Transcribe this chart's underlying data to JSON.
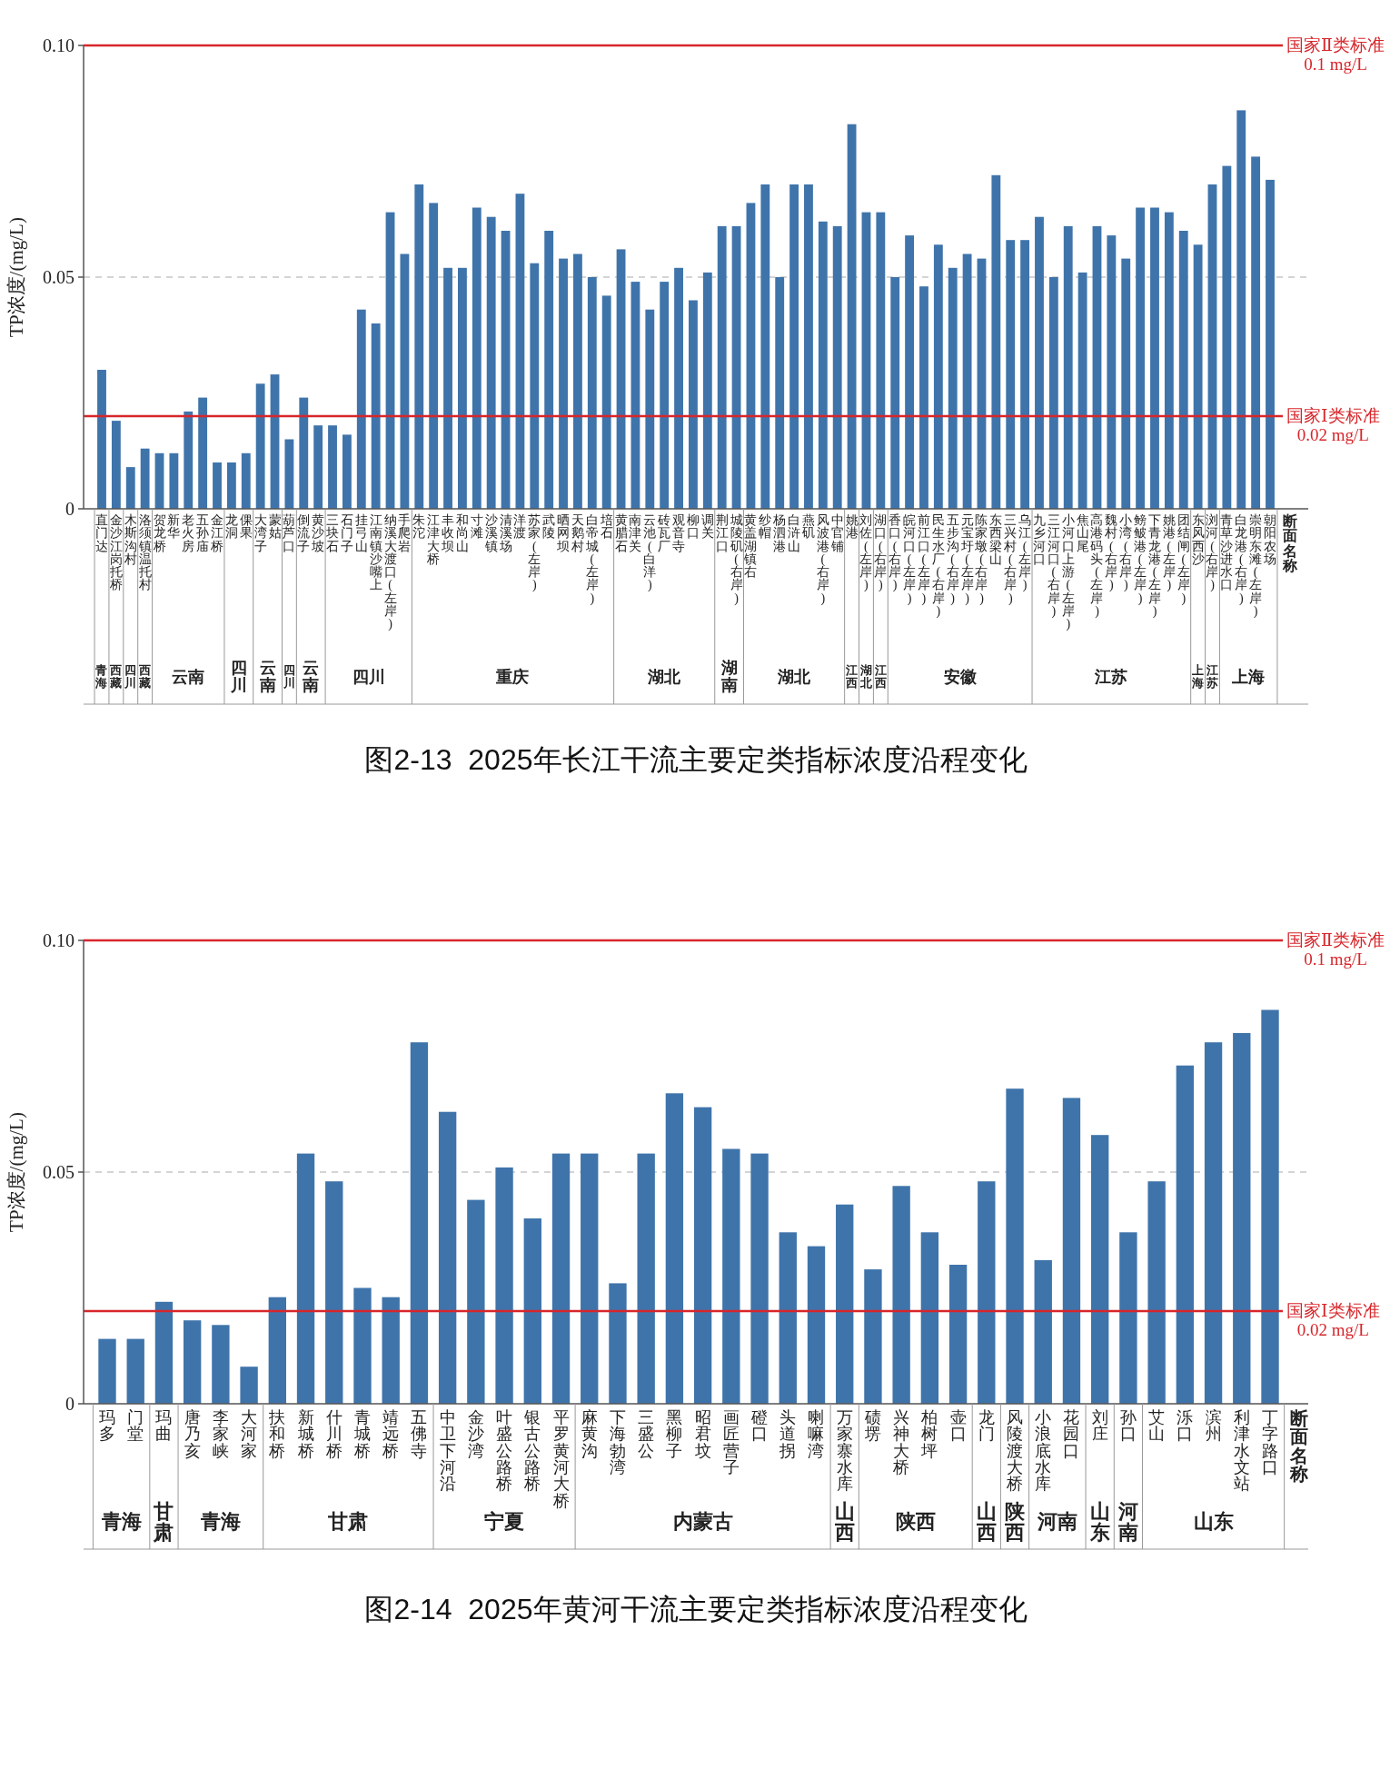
{
  "chart_data": [
    {
      "type": "bar",
      "title": "图2-13  2025年长江干流主要定类指标浓度沿程变化",
      "ylabel": "TP浓度/(mg/L)",
      "color": "#3f74ab",
      "ylim": [
        0,
        0.1
      ],
      "yticks": [
        {
          "value": 0,
          "label": "0"
        },
        {
          "value": 0.05,
          "label": "0.05"
        },
        {
          "value": 0.1,
          "label": "0.10"
        }
      ],
      "grid": "y",
      "categories": [
        "直门达",
        "金沙江岗托桥",
        "木斯沟村",
        "洛须镇温托村",
        "贺龙桥",
        "新华",
        "老火房",
        "五孙庙",
        "金江桥",
        "龙洞",
        "倮果",
        "大湾子",
        "蒙姑",
        "葫芦口",
        "倒流子",
        "黄沙坡",
        "三块石",
        "石门子",
        "挂弓山",
        "江南镇沙嘴上",
        "纳溪大渡口(左岸)",
        "手爬岩",
        "朱沱",
        "江津大桥",
        "丰收坝",
        "和尚山",
        "寸滩",
        "沙溪镇",
        "清溪场",
        "洋渡",
        "苏家(左岸)",
        "武陵",
        "晒网坝",
        "天鹅村",
        "白帝城(左岸)",
        "培石",
        "黄腊石",
        "南津关",
        "云池(白洋)",
        "砖瓦厂",
        "观音寺",
        "柳口",
        "调关",
        "荆江口",
        "城陵矶(右岸)",
        "黄盖湖镇右",
        "纱帽",
        "杨泗港",
        "白浒山",
        "燕矶",
        "风波港(右岸)",
        "中官铺",
        "姚港",
        "刘佐(左岸)",
        "湖口(右岸)",
        "香口(右岸)",
        "皖河口(左岸)",
        "前江口(左岸)",
        "民生水厂(右岸)",
        "五步沟(右岸)",
        "元宝圩(左岸)",
        "陈家墩(右岸)",
        "东西梁山",
        "三兴村(右岸)",
        "乌江(左岸)",
        "九乡河口",
        "三江河口(右岸)",
        "小河口上游(左岸)",
        "焦山尾",
        "高港码头(左岸)",
        "魏村(右岸)",
        "小湾(右岸)",
        "鳑鲏港(左岸)",
        "下青龙港(左岸)",
        "姚港(左岸)",
        "团结闸(左岸)",
        "东风西沙",
        "浏河(右岸)",
        "青草沙进水口",
        "白龙港(右岸)",
        "崇明东滩(左岸)",
        "朝阳农场"
      ],
      "values": [
        0.03,
        0.019,
        0.009,
        0.013,
        0.012,
        0.012,
        0.021,
        0.024,
        0.01,
        0.01,
        0.012,
        0.027,
        0.029,
        0.015,
        0.024,
        0.018,
        0.018,
        0.016,
        0.043,
        0.04,
        0.064,
        0.055,
        0.07,
        0.066,
        0.052,
        0.052,
        0.065,
        0.063,
        0.06,
        0.068,
        0.053,
        0.06,
        0.054,
        0.055,
        0.05,
        0.046,
        0.056,
        0.049,
        0.043,
        0.049,
        0.052,
        0.045,
        0.051,
        0.061,
        0.061,
        0.066,
        0.07,
        0.05,
        0.07,
        0.07,
        0.062,
        0.061,
        0.083,
        0.064,
        0.064,
        0.05,
        0.059,
        0.048,
        0.057,
        0.052,
        0.055,
        0.054,
        0.072,
        0.058,
        0.058,
        0.063,
        0.05,
        0.061,
        0.051,
        0.061,
        0.059,
        0.054,
        0.065,
        0.065,
        0.064,
        0.06,
        0.057,
        0.07,
        0.074,
        0.086,
        0.076,
        0.071
      ],
      "ref_lines": [
        {
          "axis": "y",
          "value": 0.1,
          "label": "国家Ⅱ类标准 0.1 mg/L",
          "color": "#d7262b"
        },
        {
          "axis": "y",
          "value": 0.02,
          "label": "国家Ⅰ类标准 0.02 mg/L",
          "color": "#d7262b"
        }
      ],
      "annotations": [
        "断面名称",
        "青海",
        "西藏",
        "四川",
        "西藏",
        "云南",
        "四川",
        "云南",
        "四川",
        "云南",
        "四川",
        "重庆",
        "湖北",
        "湖南",
        "湖北",
        "江西",
        "湖北",
        "江西",
        "安徽",
        "江苏",
        "上海",
        "江苏",
        "上海"
      ]
    },
    {
      "type": "bar",
      "title": "图2-14  2025年黄河干流主要定类指标浓度沿程变化",
      "ylabel": "TP浓度/(mg/L)",
      "color": "#3f74ab",
      "ylim": [
        0,
        0.1
      ],
      "yticks": [
        {
          "value": 0,
          "label": "0"
        },
        {
          "value": 0.05,
          "label": "0.05"
        },
        {
          "value": 0.1,
          "label": "0.10"
        }
      ],
      "grid": "y",
      "categories": [
        "玛多",
        "门堂",
        "玛曲",
        "唐乃亥",
        "李家峡",
        "大河家",
        "扶和桥",
        "新城桥",
        "什川桥",
        "青城桥",
        "靖远桥",
        "五佛寺",
        "中卫下河沿",
        "金沙湾",
        "叶盛公路桥",
        "银古公路桥",
        "平罗黄河大桥",
        "麻黄沟",
        "下海勃湾",
        "三盛公",
        "黑柳子",
        "昭君坟",
        "画匠营子",
        "磴口",
        "头道拐",
        "喇嘛湾",
        "万家寨水库",
        "碛塄",
        "兴神大桥",
        "柏树坪",
        "壶口",
        "龙门",
        "风陵渡大桥",
        "小浪底水库",
        "花园口",
        "刘庄",
        "孙口",
        "艾山",
        "泺口",
        "滨州",
        "利津水文站",
        "丁字路口"
      ],
      "values": [
        0.014,
        0.014,
        0.022,
        0.018,
        0.017,
        0.008,
        0.023,
        0.054,
        0.048,
        0.025,
        0.023,
        0.078,
        0.063,
        0.044,
        0.051,
        0.04,
        0.054,
        0.054,
        0.026,
        0.054,
        0.067,
        0.064,
        0.055,
        0.054,
        0.037,
        0.034,
        0.043,
        0.029,
        0.047,
        0.037,
        0.03,
        0.048,
        0.068,
        0.031,
        0.066,
        0.058,
        0.037,
        0.048,
        0.073,
        0.078,
        0.08,
        0.085
      ],
      "ref_lines": [
        {
          "axis": "y",
          "value": 0.1,
          "label": "国家Ⅱ类标准 0.1 mg/L",
          "color": "#d7262b"
        },
        {
          "axis": "y",
          "value": 0.02,
          "label": "国家Ⅰ类标准 0.02 mg/L",
          "color": "#d7262b"
        }
      ],
      "annotations": [
        "断面名称",
        "青海",
        "甘肃",
        "青海",
        "甘肃",
        "宁夏",
        "内蒙古",
        "山西",
        "陕西",
        "山西",
        "陕西",
        "河南",
        "山东",
        "河南",
        "山东"
      ]
    }
  ]
}
